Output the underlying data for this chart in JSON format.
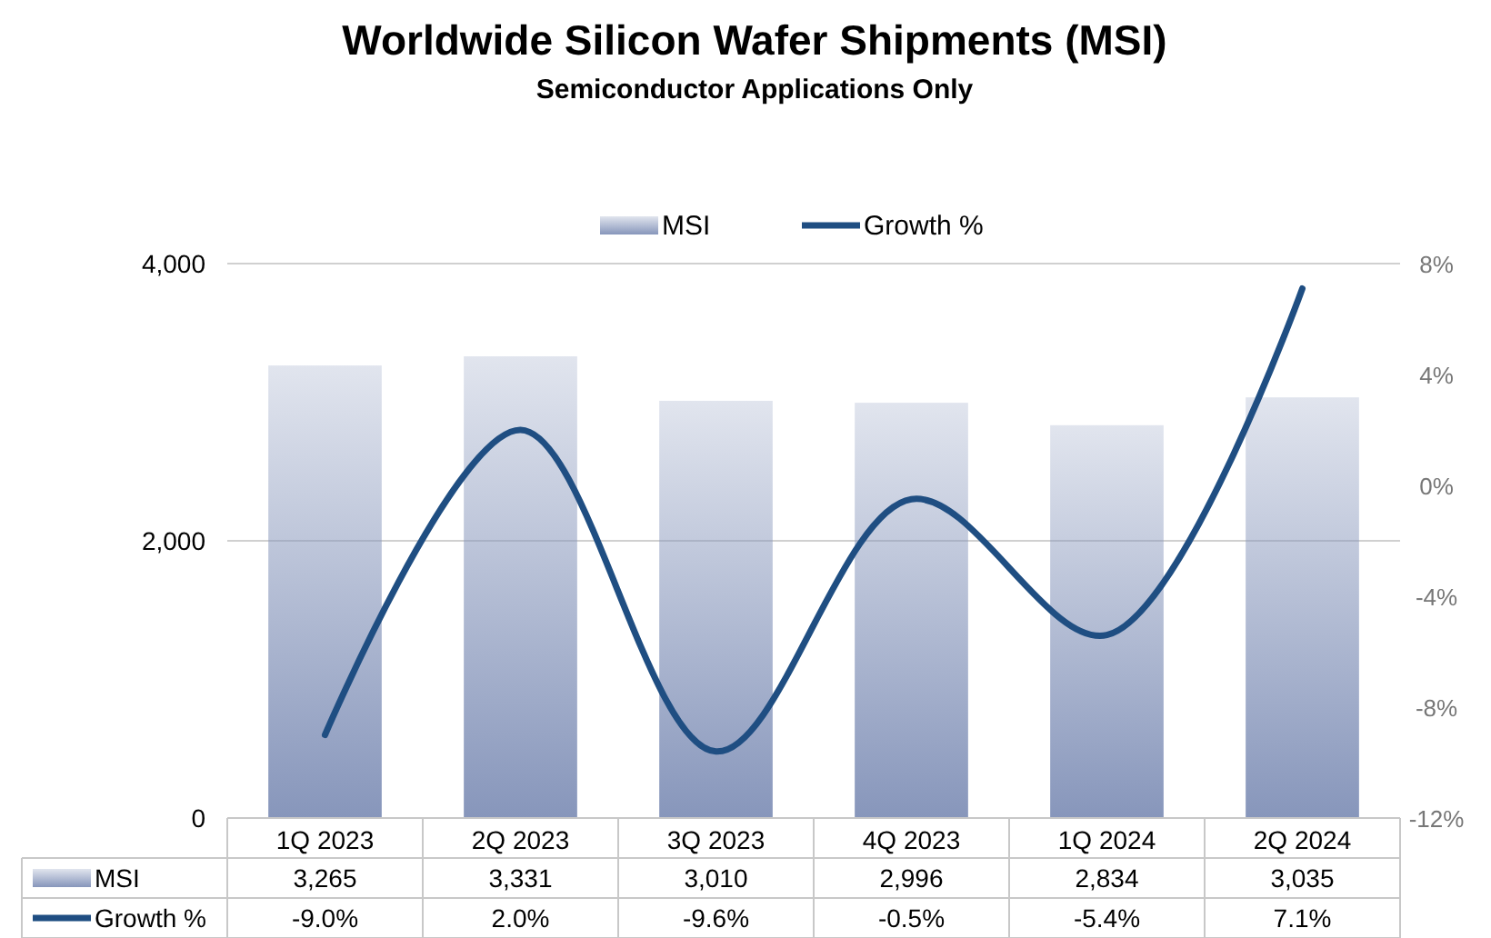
{
  "chart_data": {
    "type": "bar",
    "title": "Worldwide Silicon Wafer Shipments (MSI)",
    "subtitle": "Semiconductor Applications Only",
    "categories": [
      "1Q 2023",
      "2Q 2023",
      "3Q 2023",
      "4Q 2023",
      "1Q 2024",
      "2Q 2024"
    ],
    "series": [
      {
        "name": "MSI",
        "color": "#8796bb",
        "values": [
          3265,
          3331,
          3010,
          2996,
          2834,
          3035
        ],
        "value_labels": [
          "3,265",
          "3,331",
          "3,010",
          "2,996",
          "2,834",
          "3,035"
        ]
      },
      {
        "name": "Growth %",
        "type": "line",
        "axis": "y2",
        "color": "#1f4e82",
        "values": [
          -9.0,
          2.0,
          -9.6,
          -0.5,
          -5.4,
          7.1
        ],
        "value_labels": [
          "-9.0%",
          "2.0%",
          "-9.6%",
          "-0.5%",
          "-5.4%",
          "7.1%"
        ]
      }
    ],
    "ylim": [
      0,
      4000
    ],
    "yticks": [
      0,
      {
        "value": 2000,
        "label": "2,000"
      },
      {
        "value": 4000,
        "label": "4,000"
      }
    ],
    "y2lim": [
      -12,
      8
    ],
    "y2ticks": [
      {
        "value": -12,
        "label": "-12%"
      },
      {
        "value": -8,
        "label": "-8%"
      },
      {
        "value": -4,
        "label": "-4%"
      },
      {
        "value": 0,
        "label": "0%"
      },
      {
        "value": 4,
        "label": "4%"
      },
      {
        "value": 8,
        "label": "8%"
      }
    ],
    "grid": "y",
    "legend": "top",
    "marker": "none",
    "line_style": "solid"
  }
}
